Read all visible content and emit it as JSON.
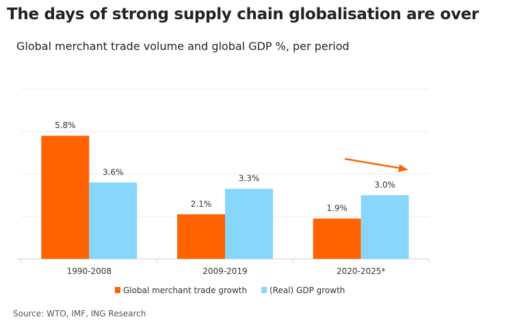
{
  "title": "The days of strong supply chain globalisation are over",
  "subtitle": "Global merchant trade volume and global GDP %, per period",
  "source": "Source: WTO, IMF, ING Research",
  "chart_data": {
    "type": "bar",
    "categories": [
      "1990-2008",
      "2009-2019",
      "2020-2025*"
    ],
    "series": [
      {
        "name": "Global merchant trade growth",
        "values": [
          5.8,
          2.1,
          1.9
        ],
        "labels": [
          "5.8%",
          "2.1%",
          "1.9%"
        ],
        "color": "#FF6200"
      },
      {
        "name": "(Real) GDP growth",
        "values": [
          3.6,
          3.3,
          3.0
        ],
        "labels": [
          "3.6%",
          "3.3%",
          "3.0%"
        ],
        "color": "#89D6FD"
      }
    ],
    "ylim": [
      0,
      8
    ],
    "grid": true,
    "legend": "bottom",
    "annotation": "downward-trend-arrow"
  }
}
